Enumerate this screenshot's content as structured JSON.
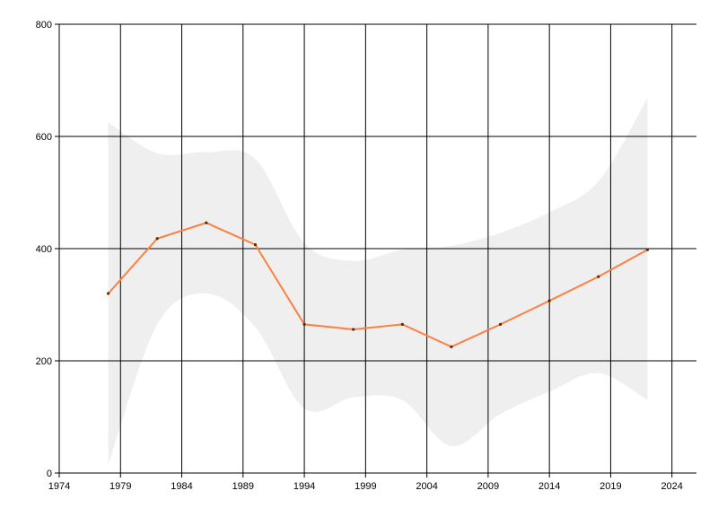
{
  "chart_data": {
    "type": "line",
    "title": "",
    "xlabel": "",
    "ylabel": "",
    "xlim": [
      1974,
      2026
    ],
    "ylim": [
      0,
      800
    ],
    "x_ticks": [
      1974,
      1979,
      1984,
      1989,
      1994,
      1999,
      2004,
      2009,
      2014,
      2019,
      2024
    ],
    "y_ticks": [
      0,
      200,
      400,
      600,
      800
    ],
    "grid": true,
    "legend": "none",
    "series": [
      {
        "x": [
          1978,
          1982,
          1986,
          1990,
          1994,
          1998,
          2002,
          2006,
          2010,
          2014,
          2018,
          2022
        ],
        "values": [
          320,
          418,
          446,
          407,
          265,
          256,
          265,
          225,
          265,
          307,
          350,
          398
        ],
        "color": "#ff7f3f"
      }
    ],
    "band": {
      "x": [
        1978,
        1982,
        1986,
        1990,
        1994,
        1998,
        2002,
        2006,
        2010,
        2014,
        2018,
        2022
      ],
      "upper": [
        625,
        570,
        572,
        560,
        410,
        378,
        398,
        405,
        428,
        465,
        520,
        668
      ],
      "lower": [
        15,
        265,
        320,
        260,
        115,
        135,
        130,
        48,
        105,
        145,
        178,
        130
      ],
      "color": "#efefef"
    }
  }
}
